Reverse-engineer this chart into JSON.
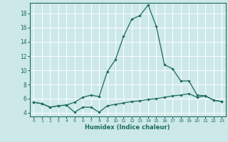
{
  "xlabel": "Humidex (Indice chaleur)",
  "ylabel": "",
  "background_color": "#cde8e8",
  "line_color": "#1a6b5a",
  "grid_color": "#ffffff",
  "xlim": [
    -0.5,
    23.5
  ],
  "ylim": [
    3.5,
    19.5
  ],
  "xticks": [
    0,
    1,
    2,
    3,
    4,
    5,
    6,
    7,
    8,
    9,
    10,
    11,
    12,
    13,
    14,
    15,
    16,
    17,
    18,
    19,
    20,
    21,
    22,
    23
  ],
  "yticks": [
    4,
    6,
    8,
    10,
    12,
    14,
    16,
    18
  ],
  "upper_x": [
    0,
    1,
    2,
    3,
    4,
    5,
    6,
    7,
    8,
    9,
    10,
    11,
    12,
    13,
    14,
    15,
    16,
    17,
    18,
    19,
    20,
    21,
    22,
    23
  ],
  "upper_y": [
    5.5,
    5.3,
    4.8,
    5.0,
    5.1,
    5.5,
    6.2,
    6.5,
    6.3,
    9.8,
    11.5,
    14.8,
    17.2,
    17.7,
    19.2,
    16.2,
    10.8,
    10.2,
    8.5,
    8.5,
    6.5,
    6.4,
    5.8,
    5.6
  ],
  "lower_x": [
    0,
    1,
    2,
    3,
    4,
    5,
    6,
    7,
    8,
    9,
    10,
    11,
    12,
    13,
    14,
    15,
    16,
    17,
    18,
    19,
    20,
    21,
    22,
    23
  ],
  "lower_y": [
    5.5,
    5.3,
    4.8,
    5.0,
    5.1,
    4.1,
    4.8,
    4.8,
    4.1,
    5.0,
    5.2,
    5.4,
    5.6,
    5.7,
    5.9,
    6.0,
    6.2,
    6.4,
    6.5,
    6.7,
    6.2,
    6.4,
    5.8,
    5.6
  ]
}
